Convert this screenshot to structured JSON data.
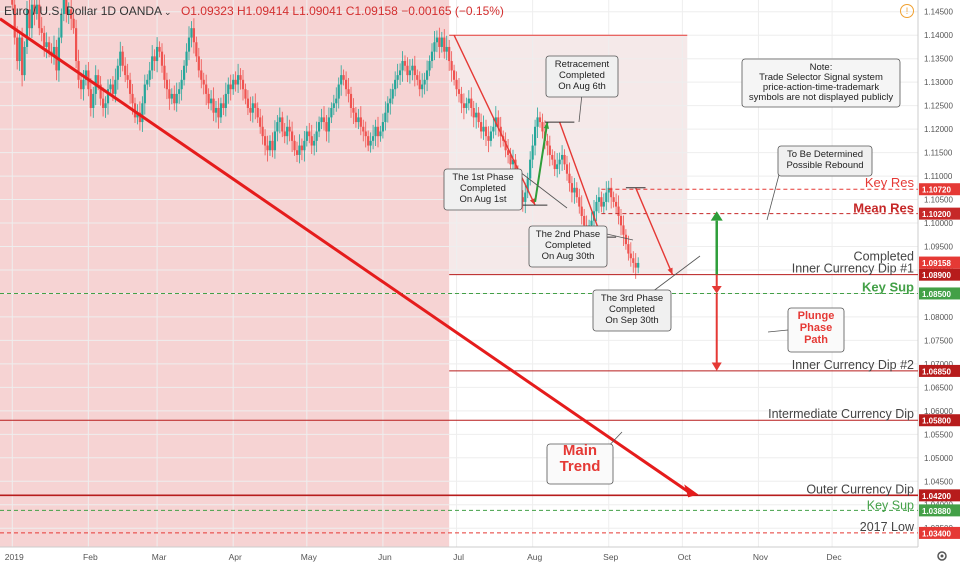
{
  "header": {
    "symbol": "Euro / U.S. Dollar  1D  OANDA",
    "caret": "⌄",
    "open": "O1.09323",
    "high": "H1.09414",
    "low": "L1.09041",
    "close": "C1.09158",
    "change": "−0.00165 (−0.15%)"
  },
  "chart_data": {
    "type": "candlestick",
    "x_ticks": [
      {
        "label": "2019",
        "day": 0
      },
      {
        "label": "Feb",
        "day": 31
      },
      {
        "label": "Mar",
        "day": 59
      },
      {
        "label": "Apr",
        "day": 90
      },
      {
        "label": "May",
        "day": 120
      },
      {
        "label": "Jun",
        "day": 151
      },
      {
        "label": "Jul",
        "day": 181
      },
      {
        "label": "Aug",
        "day": 212
      },
      {
        "label": "Sep",
        "day": 243
      },
      {
        "label": "Oct",
        "day": 273
      },
      {
        "label": "Nov",
        "day": 304
      },
      {
        "label": "Dec",
        "day": 334
      }
    ],
    "y_axis": {
      "min": 1.031,
      "max": 1.1475,
      "ticks": [
        1.145,
        1.14,
        1.135,
        1.13,
        1.125,
        1.12,
        1.115,
        1.11,
        1.105,
        1.1,
        1.095,
        1.09,
        1.085,
        1.08,
        1.075,
        1.07,
        1.065,
        1.06,
        1.055,
        1.05,
        1.045,
        1.04,
        1.035
      ]
    },
    "x_axis": {
      "min_day": -5,
      "max_day": 369
    },
    "series": [
      {
        "start_day": 0,
        "closes": [
          1.1465,
          1.1395,
          1.1345,
          1.1395,
          1.1315,
          1.1375,
          1.1455,
          1.1415,
          1.1465,
          1.1445,
          1.1465,
          1.1415,
          1.1405,
          1.1375,
          1.1385,
          1.1365,
          1.1355,
          1.1375,
          1.1325,
          1.1395,
          1.1445,
          1.1475,
          1.1445,
          1.1455,
          1.1435,
          1.1415,
          1.1345,
          1.1305,
          1.1285,
          1.1305,
          1.1325,
          1.1285,
          1.1245,
          1.1275,
          1.1315,
          1.1295,
          1.1265,
          1.1245,
          1.1255,
          1.1285,
          1.1295,
          1.1275,
          1.1305,
          1.1335,
          1.1365,
          1.1335,
          1.1315,
          1.1305,
          1.1275,
          1.1255,
          1.1225,
          1.1235,
          1.1215,
          1.1255,
          1.1295,
          1.1305,
          1.1325,
          1.1355,
          1.1345,
          1.1375,
          1.1365,
          1.1335,
          1.1305,
          1.1285,
          1.1265,
          1.1275,
          1.1255,
          1.1275,
          1.1285,
          1.1305,
          1.1335,
          1.1365,
          1.1395,
          1.1415,
          1.1385,
          1.1355,
          1.1325,
          1.1305,
          1.1295,
          1.1275,
          1.1255,
          1.1265,
          1.1235,
          1.1245,
          1.1225,
          1.1255,
          1.1245,
          1.1275,
          1.1295,
          1.1285,
          1.1305,
          1.1295,
          1.1315,
          1.1305,
          1.1285,
          1.1265,
          1.1245,
          1.1235,
          1.1255,
          1.1245,
          1.1225,
          1.1205,
          1.1185,
          1.1165,
          1.1155,
          1.1175,
          1.1155,
          1.1195,
          1.1215,
          1.1225,
          1.1195,
          1.1185,
          1.1205,
          1.1195,
          1.1175,
          1.1155,
          1.1145,
          1.1165,
          1.1155,
          1.1175,
          1.1195,
          1.1185,
          1.1165,
          1.1175,
          1.1195,
          1.1215,
          1.1225,
          1.1215,
          1.1195,
          1.1225,
          1.1245,
          1.1255,
          1.1265,
          1.1295,
          1.1315,
          1.1305,
          1.1285,
          1.1275,
          1.1245,
          1.1235,
          1.1215,
          1.1225,
          1.1205,
          1.1195,
          1.1185,
          1.1165,
          1.1175,
          1.1185,
          1.1205,
          1.1185,
          1.1195,
          1.1215,
          1.1235,
          1.1255,
          1.1265,
          1.1285,
          1.1305,
          1.1315,
          1.1325,
          1.1345,
          1.1335,
          1.1315,
          1.1325,
          1.1335,
          1.1315,
          1.1305,
          1.1285,
          1.1295,
          1.1305,
          1.1325,
          1.1345,
          1.1365,
          1.1385,
          1.1395,
          1.1375,
          1.1395,
          1.1365,
          1.1375,
          1.1345,
          1.1325,
          1.1305,
          1.1285,
          1.1275,
          1.1255,
          1.1245,
          1.1255,
          1.1265,
          1.1245,
          1.1225,
          1.1235,
          1.1215,
          1.1195,
          1.1205,
          1.1185,
          1.1175,
          1.1195,
          1.1205,
          1.1225,
          1.1205,
          1.1185,
          1.1175,
          1.1155,
          1.1145,
          1.1125,
          1.1135,
          1.1105,
          1.1085,
          1.1055,
          1.1045,
          1.1065,
          1.1095,
          1.1135,
          1.1165,
          1.1205,
          1.1225,
          1.1215,
          1.1195,
          1.1175,
          1.1165,
          1.1145,
          1.1135,
          1.1115,
          1.1125,
          1.1135,
          1.1145,
          1.1125,
          1.1105,
          1.1085,
          1.1065,
          1.1075,
          1.1055,
          1.1035,
          1.1015,
          1.0995,
          1.0985,
          1.0995,
          1.1005,
          1.1025,
          1.1045,
          1.1055,
          1.1035,
          1.1045,
          1.1065,
          1.1075,
          1.1055,
          1.1045,
          1.1035,
          1.1015,
          1.0995,
          1.0975,
          1.0955,
          1.0935,
          1.0925,
          1.0915,
          1.0905,
          1.0915
        ]
      }
    ],
    "levels": [
      {
        "label": "Key Res",
        "value": 1.1072,
        "tag": "1.10720",
        "color": "#e53935",
        "style": "dashed"
      },
      {
        "label": "Mean Res",
        "value": 1.102,
        "tag": "1.10200",
        "color": "#c62828",
        "style": "dashed",
        "bold": true
      },
      {
        "label": "Completed Inner Currency Dip #1",
        "value": 1.089,
        "tag": "1.08900",
        "color": "#b71c1c",
        "style": "solid"
      },
      {
        "label": "Key Sup",
        "value": 1.085,
        "tag": "1.08500",
        "color": "#43a047",
        "style": "dashed",
        "bold": true
      },
      {
        "label": "Inner Currency Dip #2",
        "value": 1.0685,
        "tag": "1.06850",
        "color": "#b71c1c",
        "style": "solid"
      },
      {
        "label": "Intermediate Currency Dip",
        "value": 1.058,
        "tag": "1.05800",
        "color": "#b71c1c",
        "style": "solid"
      },
      {
        "label": "Outer Currency Dip",
        "value": 1.042,
        "tag": "1.04200",
        "color": "#b71c1c",
        "style": "solid"
      },
      {
        "label": "Key Sup",
        "value": 1.0388,
        "tag": "1.03880",
        "color": "#43a047",
        "style": "dashed"
      },
      {
        "label": "2017 Low",
        "value": 1.034,
        "tag": "1.03400",
        "color": "#e53935",
        "style": "dashed"
      }
    ],
    "top_line": {
      "value": 1.14,
      "from_day": 178,
      "to_day": 275
    },
    "current_price": {
      "value": 1.09158,
      "tag": "1.09158"
    },
    "annotations": {
      "phase1": [
        "The 1st Phase",
        "Completed",
        "On Aug 1st"
      ],
      "retracement": [
        "Retracement",
        "Completed",
        "On Aug 6th"
      ],
      "phase2": [
        "The 2nd Phase",
        "Completed",
        "On Aug 30th"
      ],
      "phase3": [
        "The 3rd Phase",
        "Completed",
        "On Sep 30th"
      ],
      "rebound": [
        "To Be Determined",
        "Possible Rebound"
      ],
      "note": [
        "Note:",
        "Trade Selector Signal system",
        "price-action-time-trademark",
        "symbols are not displayed publicly"
      ],
      "plunge": [
        "Plunge",
        "Phase",
        "Path"
      ],
      "main_trend": [
        "Main",
        "Trend"
      ]
    },
    "colors": {
      "up": "#26a69a",
      "down": "#ef5350",
      "shade_left": "#f6d3d3",
      "shade_right": "#f5e9e9",
      "trend": "#e51c1c",
      "green": "#2e9e3a"
    }
  }
}
